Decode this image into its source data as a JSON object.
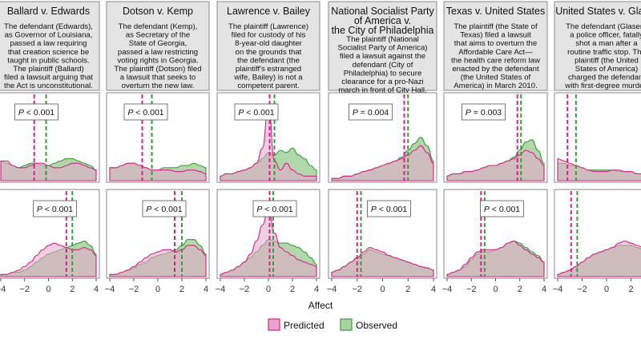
{
  "x_axis": {
    "label": "Affect",
    "ticks": [
      -4,
      -2,
      0,
      2,
      4
    ],
    "tick_labels": [
      "−4",
      "−2",
      "0",
      "2",
      "4"
    ]
  },
  "legend": [
    {
      "name": "Predicted",
      "color": "#d6238a",
      "fill": "#e8a5cb"
    },
    {
      "name": "Observed",
      "color": "#3c9a3c",
      "fill": "#a9d3a2"
    }
  ],
  "colors": {
    "overlap": "#b6a491",
    "header_bg": "#e4e4e4",
    "frame": "#8a8a8a"
  },
  "panels": [
    {
      "title_lines": [
        "Ballard v. Edwards"
      ],
      "text_lines": [
        "The defendant (Edwards),",
        "as Governor of Louisiana,",
        "passed a law requiring",
        "that creation science be",
        "taught in public schools.",
        "The plaintiff (Ballard)",
        "filed a lawsuit arguing that",
        "the Act is unconstitutional."
      ]
    },
    {
      "title_lines": [
        "Dotson v. Kemp"
      ],
      "text_lines": [
        "The defendant (Kemp),",
        "as Secretary of the",
        "State of Georgia,",
        "passed a law restricting",
        "voting rights in Georgia.",
        "The plaintiff (Dotson) filed",
        "a lawsuit that seeks to",
        "overturn the new law."
      ]
    },
    {
      "title_lines": [
        "Lawrence v. Bailey"
      ],
      "text_lines": [
        "The plaintiff (Lawrence)",
        "filed for custody of his",
        "8-year-old daughter",
        "on the grounds that",
        "the defendant (the",
        "plaintiff's estranged",
        "wife, Bailey) is not a",
        "competent parent."
      ]
    },
    {
      "title_lines": [
        "National Socialist Party",
        "of America v.",
        "the City of Philadelphia"
      ],
      "text_lines": [
        "The plaintiff (National",
        "Socialist Party of America)",
        "filed a lawsuit against the",
        "defendant (City of",
        "Philadelphia) to secure",
        "clearance for a pro-Nazi",
        "march in front of City Hall."
      ]
    },
    {
      "title_lines": [
        "Texas v. United States"
      ],
      "text_lines": [
        "The plaintiff (the State of",
        "Texas) filed a lawsuit",
        "that aims to overturn the",
        "Affordable Care Act—",
        "the health care reform law",
        "enacted by the defendant",
        "(the United States of",
        "America) in March 2010."
      ]
    },
    {
      "title_lines": [
        "United States v. Glaser"
      ],
      "text_lines": [
        "The defendant (Glaser),",
        "a police officer, fatally",
        "shot a man after a",
        "routine traffic stop. The",
        "plaintiff (the United",
        "States of America)",
        "charged the defendant",
        "with first-degree murder."
      ]
    }
  ],
  "chart_data": {
    "type": "area",
    "subtype": "density",
    "xlabel": "Affect",
    "xlim": [
      -4,
      4
    ],
    "ylim": [
      0,
      1
    ],
    "x": [
      -4,
      -3.5,
      -3,
      -2.5,
      -2,
      -1.5,
      -1,
      -0.5,
      0,
      0.5,
      1,
      1.5,
      2,
      2.5,
      3,
      3.5,
      4
    ],
    "legend": [
      "Predicted",
      "Observed"
    ],
    "legend_position": "bottom-center",
    "rows": [
      {
        "row": "top",
        "panels": [
          {
            "case": "Ballard v. Edwards",
            "p_label": "P < 0.001",
            "predicted_mean": -1.2,
            "observed_mean": -0.2,
            "predicted": [
              0.26,
              0.26,
              0.2,
              0.17,
              0.17,
              0.2,
              0.23,
              0.23,
              0.2,
              0.17,
              0.17,
              0.2,
              0.23,
              0.23,
              0.2,
              0.17,
              0.14
            ],
            "observed": [
              0.26,
              0.23,
              0.2,
              0.17,
              0.2,
              0.23,
              0.23,
              0.2,
              0.2,
              0.23,
              0.26,
              0.29,
              0.29,
              0.26,
              0.23,
              0.2,
              0.14
            ]
          },
          {
            "case": "Dotson v. Kemp",
            "p_label": "P < 0.001",
            "predicted_mean": -1.3,
            "observed_mean": -0.5,
            "predicted": [
              0.17,
              0.17,
              0.2,
              0.23,
              0.23,
              0.2,
              0.17,
              0.14,
              0.14,
              0.14,
              0.14,
              0.12,
              0.12,
              0.14,
              0.14,
              0.12,
              0.09
            ],
            "observed": [
              0.17,
              0.17,
              0.2,
              0.23,
              0.23,
              0.2,
              0.17,
              0.14,
              0.14,
              0.17,
              0.17,
              0.17,
              0.2,
              0.2,
              0.23,
              0.2,
              0.17
            ]
          },
          {
            "case": "Lawrence v. Bailey",
            "p_label": "P < 0.001",
            "predicted_mean": 0.1,
            "observed_mean": 0.5,
            "predicted": [
              0.06,
              0.09,
              0.09,
              0.12,
              0.14,
              0.17,
              0.23,
              0.43,
              1.0,
              0.26,
              0.14,
              0.23,
              0.14,
              0.09,
              0.06,
              0.06,
              0.06
            ],
            "observed": [
              0.06,
              0.09,
              0.09,
              0.12,
              0.14,
              0.17,
              0.23,
              0.29,
              0.37,
              0.34,
              0.4,
              0.37,
              0.43,
              0.34,
              0.29,
              0.2,
              0.14
            ]
          },
          {
            "case": "National Socialist Party of America v. the City of Philadelphia",
            "p_label": "P = 0.004",
            "predicted_mean": 1.7,
            "observed_mean": 2.0,
            "predicted": [
              0.03,
              0.03,
              0.06,
              0.06,
              0.09,
              0.12,
              0.14,
              0.17,
              0.2,
              0.23,
              0.26,
              0.29,
              0.34,
              0.4,
              0.46,
              0.37,
              0.23
            ],
            "observed": [
              0.03,
              0.03,
              0.06,
              0.06,
              0.09,
              0.12,
              0.14,
              0.17,
              0.2,
              0.23,
              0.26,
              0.31,
              0.4,
              0.49,
              0.57,
              0.46,
              0.26
            ]
          },
          {
            "case": "Texas v. United States",
            "p_label": "P = 0.003",
            "predicted_mean": 1.8,
            "observed_mean": 2.1,
            "predicted": [
              0.06,
              0.09,
              0.09,
              0.12,
              0.12,
              0.14,
              0.17,
              0.2,
              0.2,
              0.23,
              0.26,
              0.29,
              0.34,
              0.4,
              0.37,
              0.29,
              0.2
            ],
            "observed": [
              0.06,
              0.09,
              0.09,
              0.12,
              0.12,
              0.14,
              0.17,
              0.2,
              0.2,
              0.23,
              0.26,
              0.31,
              0.4,
              0.51,
              0.54,
              0.4,
              0.23
            ]
          },
          {
            "case": "United States v. Glaser",
            "p_label": "",
            "predicted_mean": -3.2,
            "observed_mean": -2.5,
            "predicted": [
              0.29,
              0.26,
              0.23,
              0.2,
              0.17,
              0.14,
              0.12,
              0.12,
              0.12,
              0.14,
              0.14,
              0.12,
              0.12,
              0.09,
              0.09,
              0.06,
              0.06
            ],
            "observed": [
              0.23,
              0.23,
              0.2,
              0.2,
              0.17,
              0.14,
              0.14,
              0.14,
              0.14,
              0.14,
              0.12,
              0.12,
              0.12,
              0.09,
              0.09,
              0.06,
              0.06
            ]
          }
        ]
      },
      {
        "row": "bottom",
        "panels": [
          {
            "case": "Ballard v. Edwards",
            "p_label": "P < 0.001",
            "predicted_mean": 1.5,
            "observed_mean": 2.0,
            "predicted": [
              0.03,
              0.03,
              0.06,
              0.09,
              0.14,
              0.2,
              0.29,
              0.37,
              0.43,
              0.46,
              0.43,
              0.4,
              0.37,
              0.37,
              0.4,
              0.37,
              0.29
            ],
            "observed": [
              0.03,
              0.03,
              0.06,
              0.06,
              0.09,
              0.14,
              0.2,
              0.26,
              0.31,
              0.34,
              0.37,
              0.4,
              0.43,
              0.46,
              0.49,
              0.43,
              0.31
            ]
          },
          {
            "case": "Dotson v. Kemp",
            "p_label": "P < 0.001",
            "predicted_mean": 1.4,
            "observed_mean": 2.0,
            "predicted": [
              0.03,
              0.03,
              0.06,
              0.09,
              0.14,
              0.2,
              0.26,
              0.31,
              0.34,
              0.37,
              0.37,
              0.34,
              0.37,
              0.43,
              0.43,
              0.37,
              0.29
            ],
            "observed": [
              0.03,
              0.03,
              0.06,
              0.09,
              0.12,
              0.17,
              0.2,
              0.26,
              0.29,
              0.31,
              0.34,
              0.37,
              0.43,
              0.51,
              0.51,
              0.43,
              0.31
            ]
          },
          {
            "case": "Lawrence v. Bailey",
            "p_label": "P < 0.001",
            "predicted_mean": 0.1,
            "observed_mean": 0.4,
            "predicted": [
              0.03,
              0.06,
              0.09,
              0.14,
              0.2,
              0.31,
              0.49,
              0.71,
              0.94,
              0.6,
              0.4,
              0.34,
              0.29,
              0.23,
              0.2,
              0.17,
              0.14
            ],
            "observed": [
              0.03,
              0.06,
              0.09,
              0.14,
              0.2,
              0.26,
              0.34,
              0.43,
              0.51,
              0.49,
              0.46,
              0.46,
              0.43,
              0.4,
              0.34,
              0.26,
              0.17
            ]
          },
          {
            "case": "National Socialist Party of America v. the City of Philadelphia",
            "p_label": "P < 0.001",
            "predicted_mean": -2.0,
            "observed_mean": -1.7,
            "predicted": [
              0.06,
              0.09,
              0.14,
              0.2,
              0.26,
              0.34,
              0.4,
              0.37,
              0.34,
              0.29,
              0.26,
              0.23,
              0.2,
              0.17,
              0.14,
              0.12,
              0.09
            ],
            "observed": [
              0.06,
              0.09,
              0.14,
              0.2,
              0.26,
              0.31,
              0.37,
              0.34,
              0.31,
              0.29,
              0.26,
              0.23,
              0.2,
              0.17,
              0.14,
              0.12,
              0.09
            ]
          },
          {
            "case": "Texas v. United States",
            "p_label": "P < 0.001",
            "predicted_mean": -1.2,
            "observed_mean": -0.9,
            "predicted": [
              0.03,
              0.06,
              0.09,
              0.17,
              0.26,
              0.34,
              0.37,
              0.37,
              0.37,
              0.4,
              0.46,
              0.49,
              0.43,
              0.37,
              0.31,
              0.26,
              0.2
            ],
            "observed": [
              0.03,
              0.06,
              0.09,
              0.14,
              0.23,
              0.31,
              0.34,
              0.34,
              0.37,
              0.4,
              0.46,
              0.49,
              0.46,
              0.4,
              0.34,
              0.29,
              0.2
            ]
          },
          {
            "case": "United States v. Glaser",
            "p_label": "",
            "predicted_mean": -2.9,
            "observed_mean": -2.4,
            "predicted": [
              0.03,
              0.06,
              0.09,
              0.14,
              0.2,
              0.26,
              0.31,
              0.34,
              0.37,
              0.4,
              0.46,
              0.49,
              0.46,
              0.43,
              0.4,
              0.34,
              0.26
            ],
            "observed": [
              0.03,
              0.06,
              0.09,
              0.14,
              0.2,
              0.26,
              0.31,
              0.34,
              0.37,
              0.4,
              0.43,
              0.43,
              0.43,
              0.4,
              0.37,
              0.31,
              0.23
            ]
          }
        ]
      }
    ]
  }
}
